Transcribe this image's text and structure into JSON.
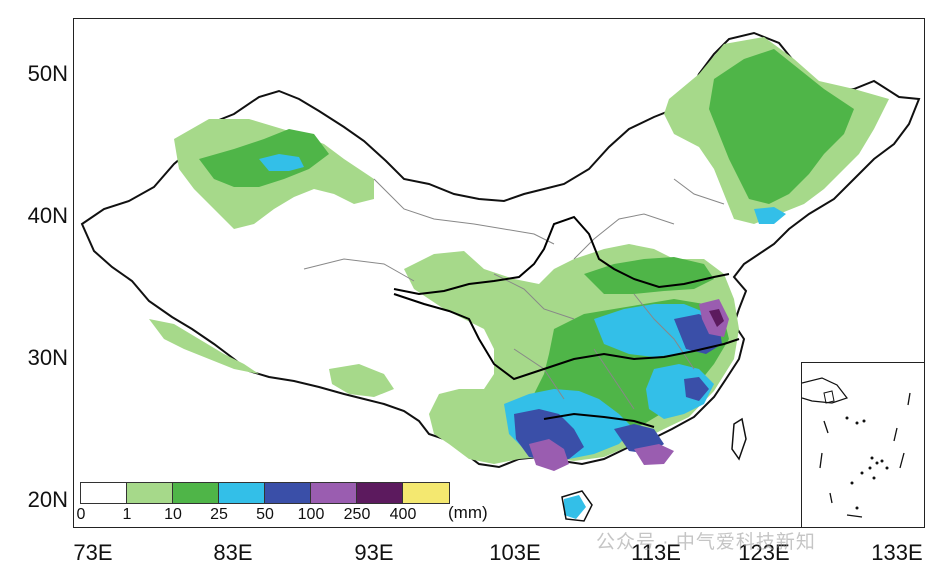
{
  "map": {
    "lat_labels": [
      "50N",
      "40N",
      "30N",
      "20N"
    ],
    "lon_labels": [
      "73E",
      "83E",
      "93E",
      "103E",
      "113E",
      "123E",
      "133E"
    ],
    "colors": {
      "border": "#111111",
      "province": "#888888",
      "river": "#000000"
    }
  },
  "legend": {
    "unit": "(mm)",
    "ticks": [
      "0",
      "1",
      "10",
      "25",
      "50",
      "100",
      "250",
      "400"
    ],
    "colors": [
      "#ffffff",
      "#a6d98a",
      "#4fb548",
      "#33bfe8",
      "#3a4fa8",
      "#9a5db0",
      "#5c1a5e",
      "#f4e870"
    ]
  },
  "watermark": "公众号 · 中气爱科技新知"
}
